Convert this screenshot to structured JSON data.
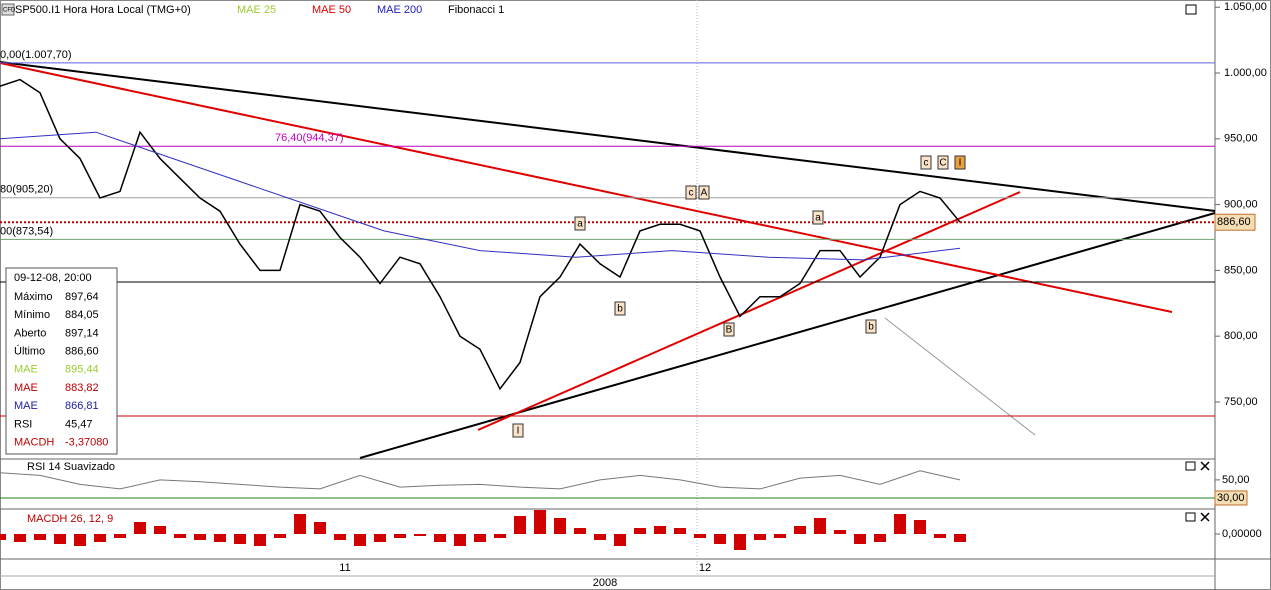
{
  "toolbar": {
    "badge": "CFD",
    "symbol": "SP500.I1 Hora Hora Local (TMG+0)",
    "indicators": [
      {
        "name": "MAE 25",
        "color": "#9acd32"
      },
      {
        "name": "MAE 50",
        "color": "#e00000"
      },
      {
        "name": "MAE 200",
        "color": "#2020c0"
      },
      {
        "name": "Fibonacci 1",
        "color": "#000000"
      }
    ]
  },
  "price_chart": {
    "ylim": [
      707.4,
      1055.5
    ],
    "yticks": [
      {
        "value": 1050,
        "label": "1.050,00"
      },
      {
        "value": 1000,
        "label": "1.000,00"
      },
      {
        "value": 950,
        "label": "950,00"
      },
      {
        "value": 900,
        "label": "900,00"
      },
      {
        "value": 850,
        "label": "850,00"
      },
      {
        "value": 800,
        "label": "800,00"
      },
      {
        "value": 750,
        "label": "750,00"
      }
    ],
    "last_price": {
      "value": 886.6,
      "label": "886,60"
    },
    "levels": [
      {
        "value": 1007.7,
        "label": "0,00(1.007,70)",
        "color": "#6060e0"
      },
      {
        "value": 944.37,
        "label": "76,40(944,37)",
        "color": "#c000c0"
      },
      {
        "value": 905.2,
        "label": "80(905,20)",
        "color": "#a0a0a0"
      },
      {
        "value": 873.54,
        "label": "00(873,54)",
        "color": "#70a070"
      }
    ],
    "series": [
      {
        "name": "Último",
        "color": "#000000",
        "values": [
          990,
          995,
          985,
          950,
          935,
          905,
          910,
          955,
          935,
          920,
          905,
          895,
          870,
          850,
          850,
          900,
          895,
          875,
          860,
          840,
          860,
          855,
          830,
          800,
          790,
          760,
          780,
          830,
          845,
          870,
          855,
          845,
          880,
          885,
          885,
          880,
          845,
          815,
          830,
          830,
          840,
          865,
          865,
          845,
          860,
          900,
          910,
          905,
          886.6
        ]
      },
      {
        "name": "MAE 200",
        "color": "#3030c0",
        "values": [
          950,
          955,
          930,
          905,
          880,
          865,
          860,
          865,
          860,
          858,
          866.81
        ]
      }
    ],
    "wave_labels": [
      "a",
      "b",
      "c",
      "A",
      "a",
      "B",
      "b",
      "c",
      "C",
      "I",
      "I"
    ],
    "info_box": {
      "title": "09-12-08, 20:00",
      "rows": [
        {
          "label": "Máximo",
          "value": "897,64",
          "color": "#000000"
        },
        {
          "label": "Mínimo",
          "value": "884,05",
          "color": "#000000"
        },
        {
          "label": "Aberto",
          "value": "897,14",
          "color": "#000000"
        },
        {
          "label": "Último",
          "value": "886,60",
          "color": "#000000"
        },
        {
          "label": "MAE",
          "value": "895,44",
          "color": "#9acd32"
        },
        {
          "label": "MAE",
          "value": "883,82",
          "color": "#c00000"
        },
        {
          "label": "MAE",
          "value": "866,81",
          "color": "#2020a0"
        },
        {
          "label": "RSI",
          "value": "45,47",
          "color": "#000000"
        },
        {
          "label": "MACDH",
          "value": "-3,37080",
          "color": "#c00000"
        }
      ]
    }
  },
  "rsi": {
    "title": "RSI 14 Suavizado",
    "ylim": [
      20,
      72
    ],
    "yticks": [
      {
        "value": 50,
        "label": "50,00"
      }
    ],
    "level": {
      "value": 30,
      "label": "30,00"
    },
    "values": [
      58,
      55,
      45,
      40,
      50,
      48,
      45,
      42,
      40,
      55,
      42,
      44,
      45,
      42,
      40,
      50,
      55,
      50,
      42,
      40,
      52,
      55,
      45,
      60,
      50
    ]
  },
  "macd": {
    "title": "MACDH 26, 12, 9",
    "ylim": [
      -12,
      12
    ],
    "yticks": [
      {
        "value": 0,
        "label": "0,00000"
      }
    ],
    "values": [
      -3,
      -4,
      -3,
      -5,
      -6,
      -4,
      -2,
      6,
      4,
      -2,
      -3,
      -4,
      -5,
      -6,
      -2,
      10,
      6,
      -3,
      -6,
      -4,
      -2,
      -1,
      -4,
      -6,
      -4,
      -2,
      9,
      12,
      8,
      3,
      -3,
      -6,
      3,
      4,
      3,
      -2,
      -5,
      -8,
      -3,
      -2,
      4,
      8,
      2,
      -5,
      -4,
      10,
      7,
      -2,
      -4
    ]
  },
  "time_axis": {
    "labels": [
      "11",
      "12"
    ],
    "year": "2008"
  }
}
